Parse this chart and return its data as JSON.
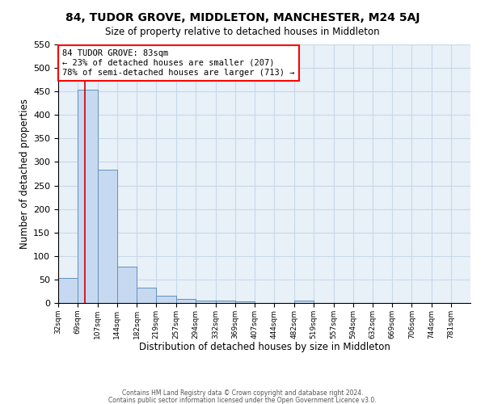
{
  "title": "84, TUDOR GROVE, MIDDLETON, MANCHESTER, M24 5AJ",
  "subtitle": "Size of property relative to detached houses in Middleton",
  "xlabel": "Distribution of detached houses by size in Middleton",
  "ylabel": "Number of detached properties",
  "bar_color": "#c6d9f0",
  "bar_edge_color": "#5b8db8",
  "bin_labels": [
    "32sqm",
    "69sqm",
    "107sqm",
    "144sqm",
    "182sqm",
    "219sqm",
    "257sqm",
    "294sqm",
    "332sqm",
    "369sqm",
    "407sqm",
    "444sqm",
    "482sqm",
    "519sqm",
    "557sqm",
    "594sqm",
    "632sqm",
    "669sqm",
    "706sqm",
    "744sqm",
    "781sqm"
  ],
  "bar_heights": [
    53,
    453,
    284,
    77,
    33,
    15,
    9,
    6,
    5,
    4,
    0,
    0,
    5,
    0,
    0,
    0,
    0,
    0,
    0,
    0,
    0
  ],
  "ylim": [
    0,
    550
  ],
  "yticks": [
    0,
    50,
    100,
    150,
    200,
    250,
    300,
    350,
    400,
    450,
    500,
    550
  ],
  "property_line_x": 83,
  "bin_edges_values": [
    32,
    69,
    107,
    144,
    182,
    219,
    257,
    294,
    332,
    369,
    407,
    444,
    482,
    519,
    557,
    594,
    632,
    669,
    706,
    744,
    781,
    818
  ],
  "annotation_text": "84 TUDOR GROVE: 83sqm\n← 23% of detached houses are smaller (207)\n78% of semi-detached houses are larger (713) →",
  "annotation_box_color": "white",
  "annotation_box_edge_color": "red",
  "red_line_color": "#cc0000",
  "grid_color": "#c8d8e8",
  "background_color": "#e8f0f8",
  "footer_line1": "Contains HM Land Registry data © Crown copyright and database right 2024.",
  "footer_line2": "Contains public sector information licensed under the Open Government Licence v3.0."
}
